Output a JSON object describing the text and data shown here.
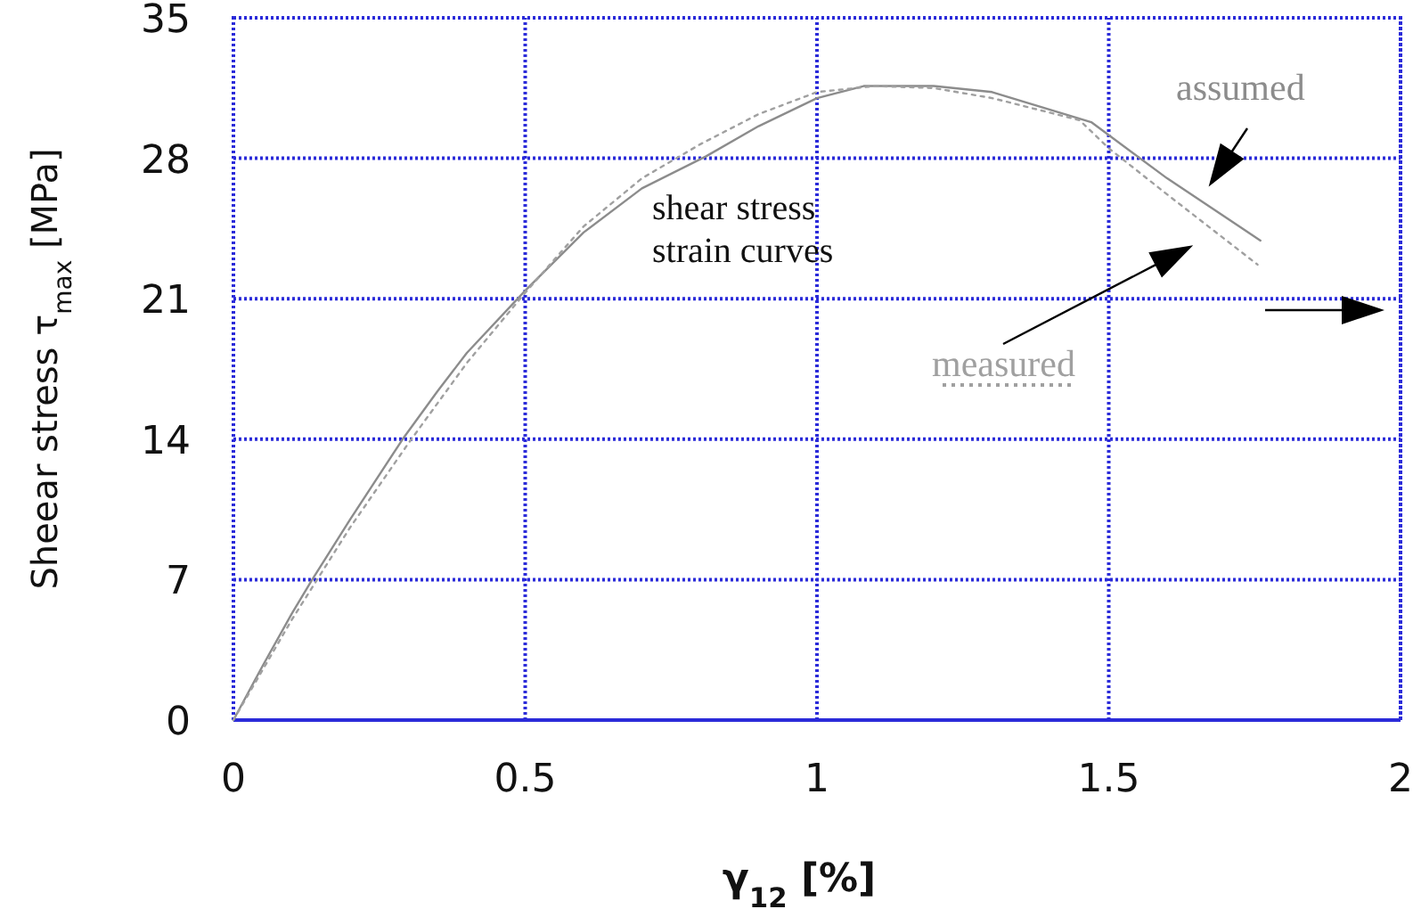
{
  "chart_data": {
    "type": "line",
    "xlabel": "γ$_{12}$ [%]",
    "ylabel": "Sheear stress  τ$_{max}$ [MPa]",
    "xlim": [
      0,
      2
    ],
    "xticks": [
      0,
      0.5,
      1,
      1.5,
      2
    ],
    "ylim": [
      0,
      35
    ],
    "yticks": [
      0,
      7,
      14,
      21,
      28,
      35
    ],
    "grid": true,
    "legend": false,
    "annotations": [
      "shear stress\nstrain curves"
    ],
    "series": [
      {
        "name": "assumed",
        "color": "#8c8c8c",
        "line_style": "solid",
        "x": [
          0,
          0.05,
          0.1,
          0.135,
          0.2,
          0.29,
          0.35,
          0.4,
          0.5,
          0.6,
          0.7,
          0.81,
          0.9,
          1.0,
          1.08,
          1.2,
          1.3,
          1.47,
          1.6,
          1.76
        ],
        "values": [
          0,
          2.7,
          5.3,
          7,
          10,
          14,
          16.4,
          18.3,
          21.4,
          24.3,
          26.5,
          28.1,
          29.6,
          31.0,
          31.6,
          31.6,
          31.3,
          29.8,
          27,
          23.9
        ]
      },
      {
        "name": "measured",
        "color": "#a0a0a0",
        "line_style": "dotted",
        "x": [
          0,
          0.1,
          0.2,
          0.3,
          0.4,
          0.5,
          0.6,
          0.7,
          0.8,
          0.9,
          1.0,
          1.1,
          1.2,
          1.3,
          1.45,
          1.5,
          1.6,
          1.755
        ],
        "values": [
          0,
          5,
          9.6,
          13.8,
          17.8,
          21.3,
          24.6,
          27,
          28.7,
          30.2,
          31.3,
          31.6,
          31.5,
          31.0,
          29.9,
          28.5,
          26.2,
          22.7
        ]
      }
    ]
  }
}
